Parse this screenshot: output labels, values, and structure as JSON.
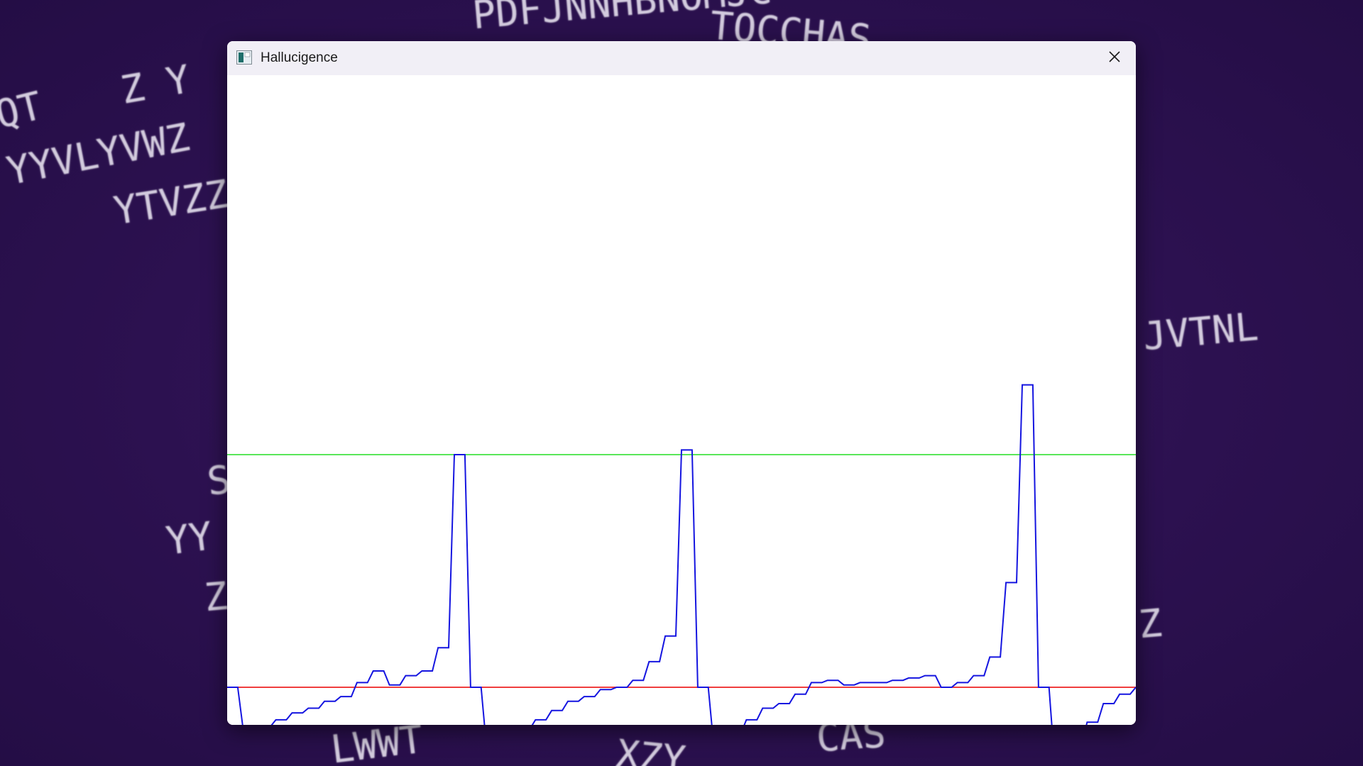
{
  "window": {
    "title": "Hallucigence"
  },
  "desktop": {
    "background_color": "#2c1150",
    "background_text": [
      "PDFJNNHBNOMJC",
      "TOCCHAS",
      "QT",
      "Z Y",
      "YYVLYVWZ",
      "YTVZZ",
      "JVTNL",
      "S",
      "YY",
      "Z",
      "Z",
      "LWWT",
      "XZY",
      "CAS"
    ]
  },
  "plot": {
    "colors": {
      "signal": "#1515e0",
      "upper_threshold": "#22dd22",
      "baseline": "#ee2222"
    },
    "chart_data": {
      "type": "line",
      "title": "",
      "xlabel": "",
      "ylabel": "",
      "grid": false,
      "series": [
        {
          "values": [
            0.0,
            -0.19,
            -0.17,
            -0.14,
            -0.11,
            -0.09,
            -0.06,
            -0.04,
            0.02,
            0.07,
            0.01,
            0.05,
            0.07,
            0.17,
            1.0,
            0.0,
            -0.27,
            -0.22,
            -0.18,
            -0.14,
            -0.1,
            -0.06,
            -0.04,
            -0.01,
            0.0,
            0.03,
            0.11,
            0.22,
            1.02,
            0.0,
            -0.26,
            -0.2,
            -0.14,
            -0.09,
            -0.07,
            -0.03,
            0.02,
            0.03,
            0.01,
            0.02,
            0.02,
            0.03,
            0.04,
            0.05,
            0.0,
            0.02,
            0.05,
            0.13,
            0.45,
            1.3,
            0.0,
            -0.33,
            -0.25,
            -0.15,
            -0.07,
            -0.03,
            0.0
          ]
        }
      ],
      "reference_lines": [
        {
          "value": 1.0
        },
        {
          "value": 0.0
        }
      ]
    }
  }
}
